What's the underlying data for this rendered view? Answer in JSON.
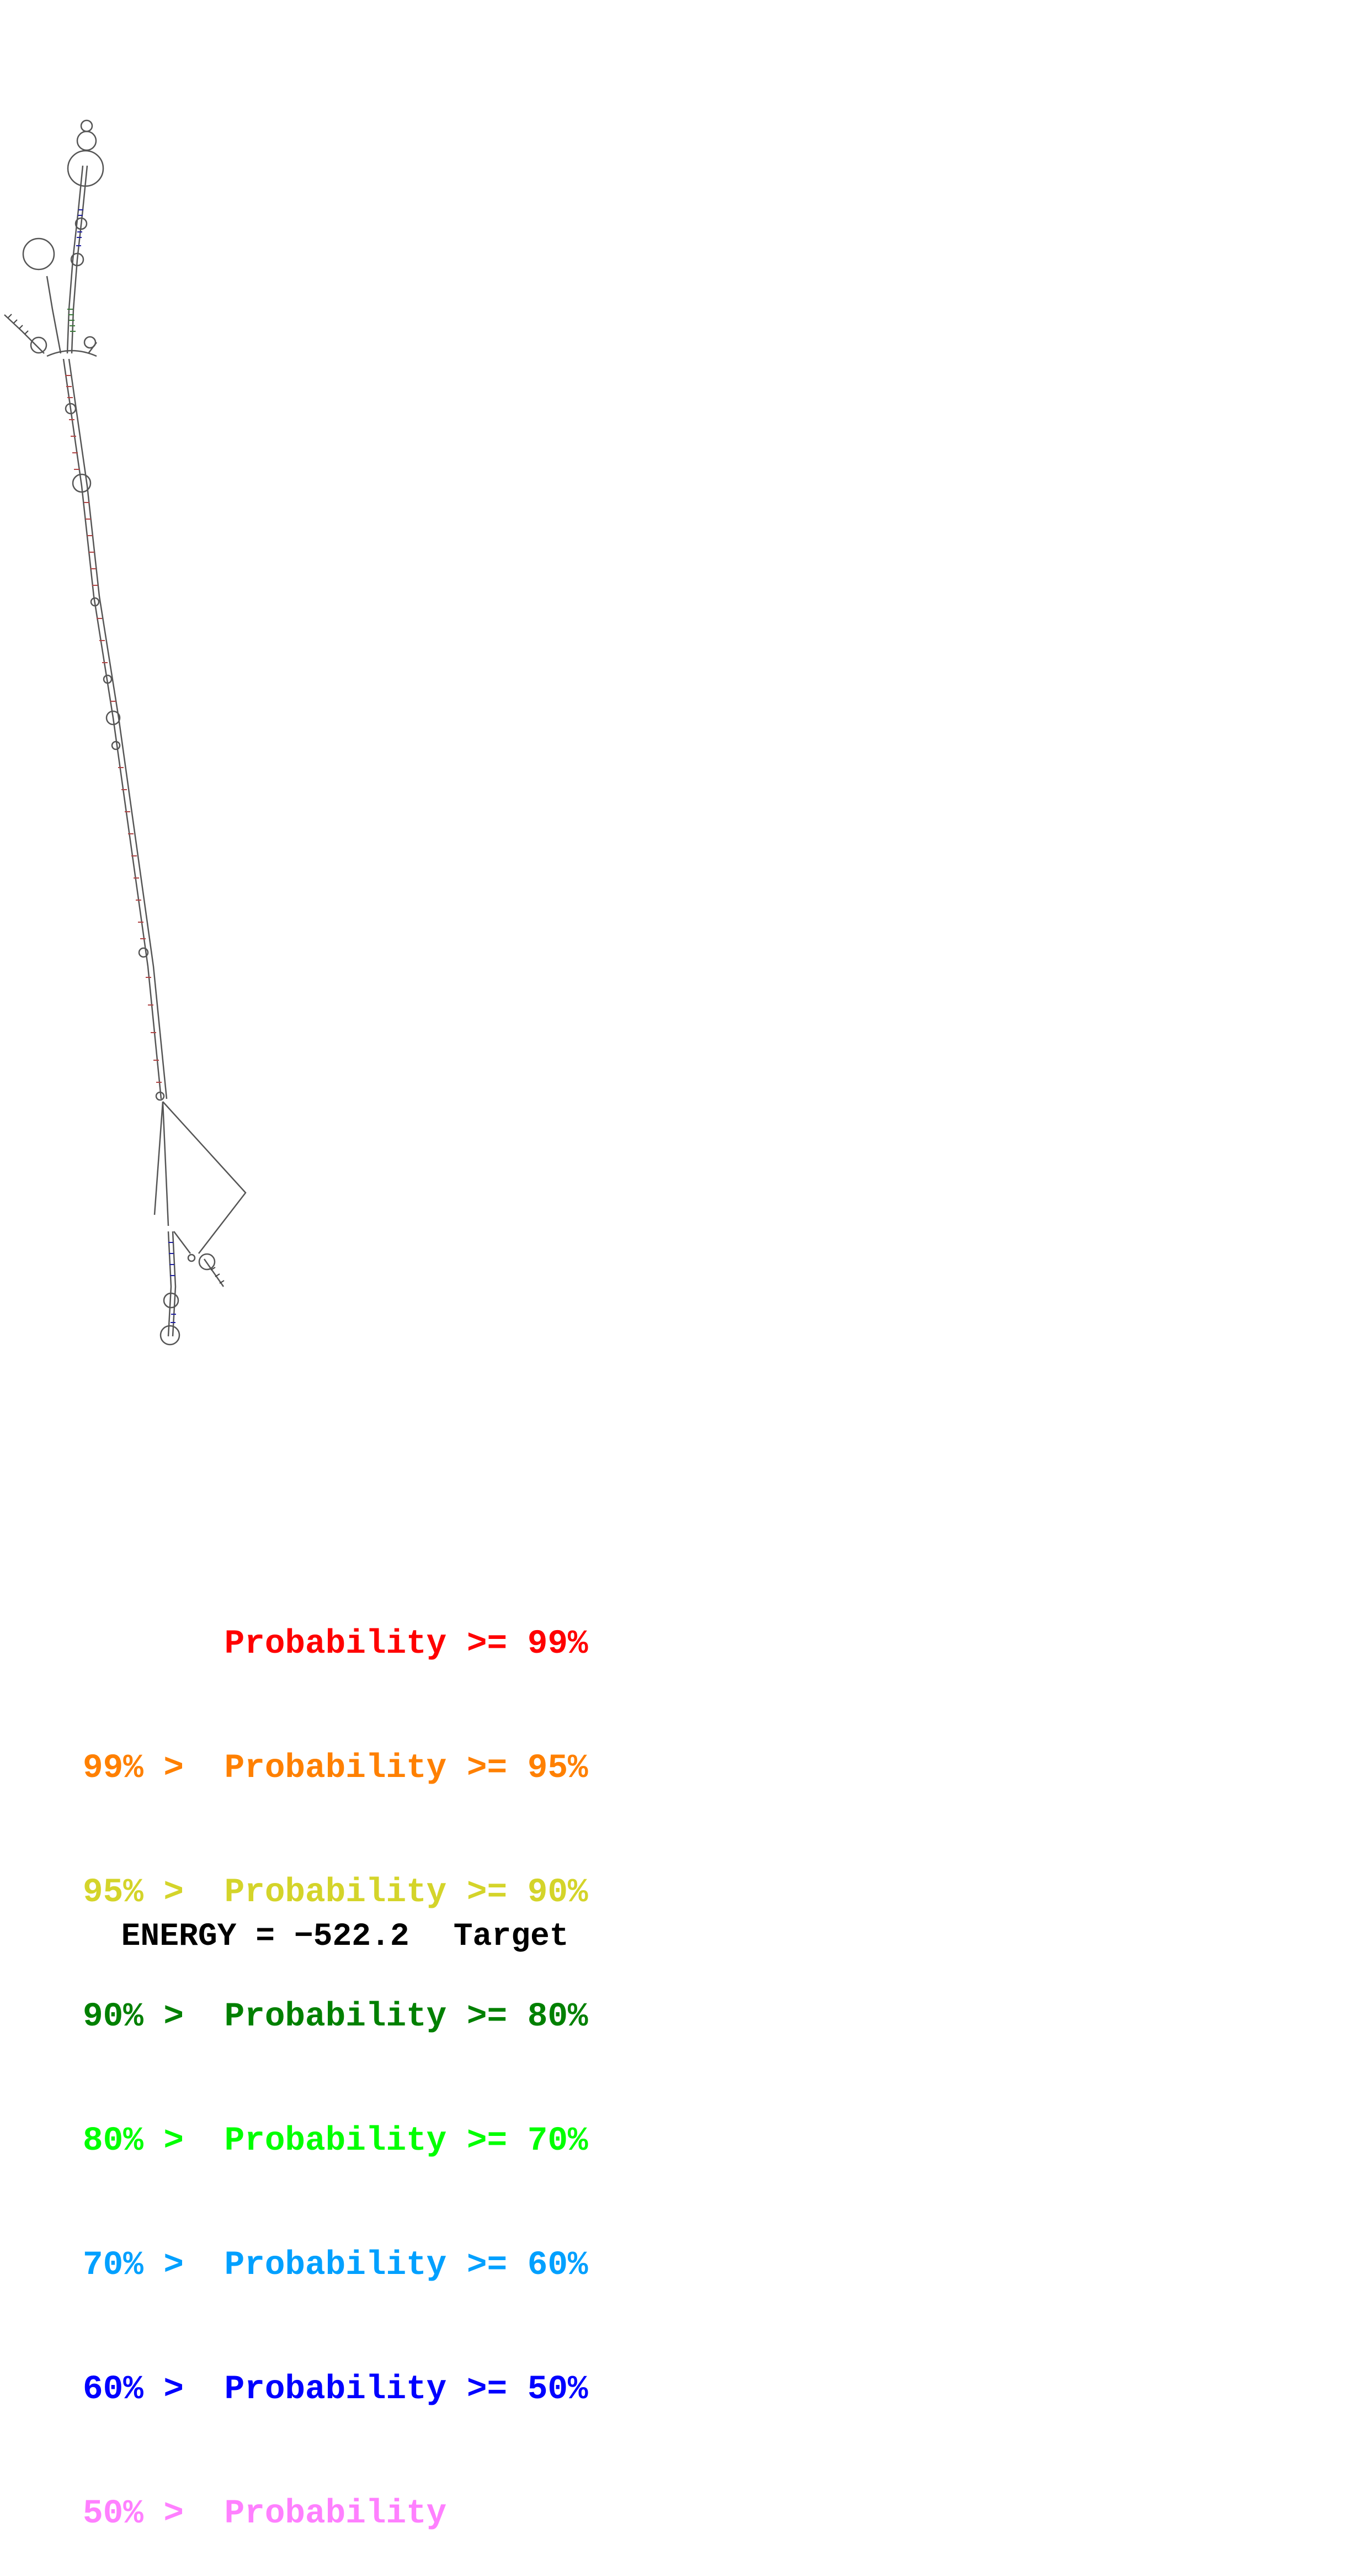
{
  "legend": {
    "rows": [
      {
        "prefix": "",
        "label": "Probability",
        "suffix": ">= 99%",
        "color": "#ff0000"
      },
      {
        "prefix": "99% >",
        "label": "Probability",
        "suffix": ">= 95%",
        "color": "#ff8000"
      },
      {
        "prefix": "95% >",
        "label": "Probability",
        "suffix": ">= 90%",
        "color": "#d4d42a"
      },
      {
        "prefix": "90% >",
        "label": "Probability",
        "suffix": ">= 80%",
        "color": "#008000"
      },
      {
        "prefix": "80% >",
        "label": "Probability",
        "suffix": ">= 70%",
        "color": "#00ff00"
      },
      {
        "prefix": "70% >",
        "label": "Probability",
        "suffix": ">= 60%",
        "color": "#00a0ff"
      },
      {
        "prefix": "60% >",
        "label": "Probability",
        "suffix": ">= 50%",
        "color": "#0000ff"
      },
      {
        "prefix": "50% >",
        "label": "Probability",
        "suffix": "",
        "color": "#ff80ff"
      }
    ]
  },
  "footer": {
    "energy_label": "ENERGY = −522.2",
    "target_label": "Target"
  },
  "structure_colors": {
    "backbone": "#444444",
    "helix_main": "#c04040",
    "helix_upper": "#3a7a3a",
    "helix_blue": "#2020a0"
  }
}
